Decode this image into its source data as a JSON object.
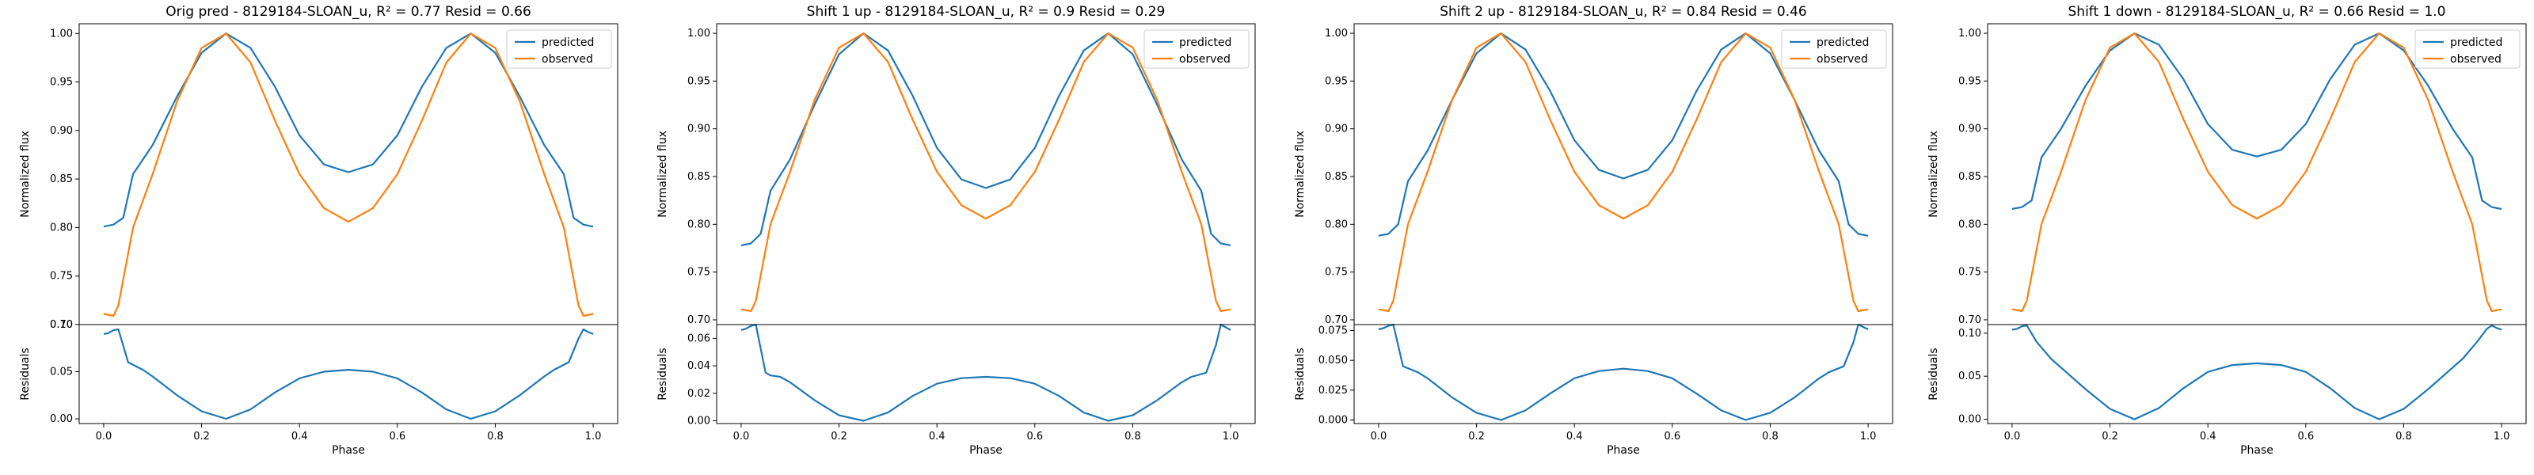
{
  "colors": {
    "predicted": "#1f77b4",
    "observed": "#ff7f0e"
  },
  "chart_data": [
    {
      "type": "line",
      "title": "Orig pred - 8129184-SLOAN_u, R² = 0.77 Resid = 0.66",
      "legend": [
        "predicted",
        "observed"
      ],
      "legend_position": "top-right",
      "top": {
        "ylabel": "Normalized flux",
        "xlim": [
          -0.05,
          1.05
        ],
        "ylim": [
          0.7,
          1.01
        ],
        "yticks": [
          0.7,
          0.75,
          0.8,
          0.85,
          0.9,
          0.95,
          1.0
        ],
        "ytick_labels": [
          "0.70",
          "0.75",
          "0.80",
          "0.85",
          "0.90",
          "0.95",
          "1.00"
        ],
        "series": [
          {
            "name": "predicted",
            "x": [
              0,
              0.02,
              0.04,
              0.06,
              0.1,
              0.15,
              0.2,
              0.25,
              0.3,
              0.35,
              0.4,
              0.45,
              0.5,
              0.55,
              0.6,
              0.65,
              0.7,
              0.75,
              0.8,
              0.85,
              0.9,
              0.94,
              0.96,
              0.98,
              1.0
            ],
            "y": [
              0.801,
              0.803,
              0.81,
              0.855,
              0.885,
              0.935,
              0.98,
              1.0,
              0.985,
              0.945,
              0.895,
              0.865,
              0.857,
              0.865,
              0.895,
              0.945,
              0.985,
              1.0,
              0.98,
              0.935,
              0.885,
              0.855,
              0.81,
              0.803,
              0.801
            ]
          },
          {
            "name": "observed",
            "x": [
              0,
              0.02,
              0.03,
              0.06,
              0.1,
              0.15,
              0.2,
              0.25,
              0.3,
              0.35,
              0.4,
              0.45,
              0.5,
              0.55,
              0.6,
              0.65,
              0.7,
              0.75,
              0.8,
              0.85,
              0.9,
              0.94,
              0.97,
              0.98,
              1.0
            ],
            "y": [
              0.711,
              0.709,
              0.72,
              0.8,
              0.855,
              0.93,
              0.985,
              1.0,
              0.97,
              0.91,
              0.855,
              0.82,
              0.806,
              0.82,
              0.855,
              0.91,
              0.97,
              1.0,
              0.985,
              0.93,
              0.855,
              0.8,
              0.72,
              0.709,
              0.711
            ]
          }
        ]
      },
      "bottom": {
        "xlabel": "Phase",
        "ylabel": "Residuals",
        "xlim": [
          -0.05,
          1.05
        ],
        "ylim": [
          -0.005,
          0.1
        ],
        "xticks": [
          0.0,
          0.2,
          0.4,
          0.6,
          0.8,
          1.0
        ],
        "xtick_labels": [
          "0.0",
          "0.2",
          "0.4",
          "0.6",
          "0.8",
          "1.0"
        ],
        "yticks": [
          0.0,
          0.05,
          0.1
        ],
        "ytick_labels": [
          "0.00",
          "0.05",
          "0.10"
        ],
        "series": [
          {
            "name": "residuals",
            "x": [
              0,
              0.01,
              0.02,
              0.03,
              0.05,
              0.08,
              0.1,
              0.15,
              0.2,
              0.25,
              0.3,
              0.35,
              0.4,
              0.45,
              0.5,
              0.55,
              0.6,
              0.65,
              0.7,
              0.75,
              0.8,
              0.85,
              0.9,
              0.92,
              0.95,
              0.97,
              0.98,
              0.99,
              1.0
            ],
            "y": [
              0.09,
              0.091,
              0.094,
              0.095,
              0.06,
              0.052,
              0.045,
              0.025,
              0.008,
              0.0,
              0.01,
              0.028,
              0.043,
              0.05,
              0.052,
              0.05,
              0.043,
              0.028,
              0.01,
              0.0,
              0.008,
              0.025,
              0.045,
              0.052,
              0.06,
              0.085,
              0.095,
              0.092,
              0.09
            ]
          }
        ]
      }
    },
    {
      "type": "line",
      "title": "Shift 1 up - 8129184-SLOAN_u, R² = 0.9 Resid = 0.29",
      "legend": [
        "predicted",
        "observed"
      ],
      "legend_position": "top-right",
      "top": {
        "ylabel": "Normalized flux",
        "xlim": [
          -0.05,
          1.05
        ],
        "ylim": [
          0.695,
          1.01
        ],
        "yticks": [
          0.7,
          0.75,
          0.8,
          0.85,
          0.9,
          0.95,
          1.0
        ],
        "ytick_labels": [
          "0.70",
          "0.75",
          "0.80",
          "0.85",
          "0.90",
          "0.95",
          "1.00"
        ],
        "series": [
          {
            "name": "predicted",
            "x": [
              0,
              0.02,
              0.04,
              0.06,
              0.1,
              0.15,
              0.2,
              0.25,
              0.3,
              0.35,
              0.4,
              0.45,
              0.5,
              0.55,
              0.6,
              0.65,
              0.7,
              0.75,
              0.8,
              0.85,
              0.9,
              0.94,
              0.96,
              0.98,
              1.0
            ],
            "y": [
              0.778,
              0.78,
              0.79,
              0.835,
              0.868,
              0.925,
              0.978,
              1.0,
              0.982,
              0.935,
              0.88,
              0.847,
              0.838,
              0.847,
              0.88,
              0.935,
              0.982,
              1.0,
              0.978,
              0.925,
              0.868,
              0.835,
              0.79,
              0.78,
              0.778
            ]
          },
          {
            "name": "observed",
            "x": [
              0,
              0.02,
              0.03,
              0.06,
              0.1,
              0.15,
              0.2,
              0.25,
              0.3,
              0.35,
              0.4,
              0.45,
              0.5,
              0.55,
              0.6,
              0.65,
              0.7,
              0.75,
              0.8,
              0.85,
              0.9,
              0.94,
              0.97,
              0.98,
              1.0
            ],
            "y": [
              0.711,
              0.709,
              0.72,
              0.8,
              0.855,
              0.93,
              0.985,
              1.0,
              0.97,
              0.91,
              0.855,
              0.82,
              0.806,
              0.82,
              0.855,
              0.91,
              0.97,
              1.0,
              0.985,
              0.93,
              0.855,
              0.8,
              0.72,
              0.709,
              0.711
            ]
          }
        ]
      },
      "bottom": {
        "xlabel": "Phase",
        "ylabel": "Residuals",
        "xlim": [
          -0.05,
          1.05
        ],
        "ylim": [
          -0.002,
          0.07
        ],
        "xticks": [
          0.0,
          0.2,
          0.4,
          0.6,
          0.8,
          1.0
        ],
        "xtick_labels": [
          "0.0",
          "0.2",
          "0.4",
          "0.6",
          "0.8",
          "1.0"
        ],
        "yticks": [
          0.0,
          0.02,
          0.04,
          0.06
        ],
        "ytick_labels": [
          "0.00",
          "0.02",
          "0.04",
          "0.06"
        ],
        "series": [
          {
            "name": "residuals",
            "x": [
              0,
              0.01,
              0.02,
              0.03,
              0.05,
              0.06,
              0.08,
              0.1,
              0.15,
              0.2,
              0.25,
              0.3,
              0.35,
              0.4,
              0.45,
              0.5,
              0.55,
              0.6,
              0.65,
              0.7,
              0.75,
              0.8,
              0.85,
              0.9,
              0.92,
              0.95,
              0.97,
              0.98,
              0.99,
              1.0
            ],
            "y": [
              0.066,
              0.067,
              0.069,
              0.07,
              0.035,
              0.033,
              0.032,
              0.028,
              0.015,
              0.004,
              0.0,
              0.006,
              0.018,
              0.027,
              0.031,
              0.032,
              0.031,
              0.027,
              0.018,
              0.006,
              0.0,
              0.004,
              0.015,
              0.028,
              0.032,
              0.035,
              0.055,
              0.07,
              0.068,
              0.066
            ]
          }
        ]
      }
    },
    {
      "type": "line",
      "title": "Shift 2 up - 8129184-SLOAN_u, R² = 0.84 Resid = 0.46",
      "legend": [
        "predicted",
        "observed"
      ],
      "legend_position": "top-right",
      "top": {
        "ylabel": "Normalized flux",
        "xlim": [
          -0.05,
          1.05
        ],
        "ylim": [
          0.695,
          1.01
        ],
        "yticks": [
          0.7,
          0.75,
          0.8,
          0.85,
          0.9,
          0.95,
          1.0
        ],
        "ytick_labels": [
          "0.70",
          "0.75",
          "0.80",
          "0.85",
          "0.90",
          "0.95",
          "1.00"
        ],
        "series": [
          {
            "name": "predicted",
            "x": [
              0,
              0.02,
              0.04,
              0.06,
              0.1,
              0.15,
              0.2,
              0.25,
              0.3,
              0.35,
              0.4,
              0.45,
              0.5,
              0.55,
              0.6,
              0.65,
              0.7,
              0.75,
              0.8,
              0.85,
              0.9,
              0.94,
              0.96,
              0.98,
              1.0
            ],
            "y": [
              0.788,
              0.79,
              0.8,
              0.845,
              0.877,
              0.93,
              0.979,
              1.0,
              0.983,
              0.94,
              0.888,
              0.857,
              0.848,
              0.857,
              0.888,
              0.94,
              0.983,
              1.0,
              0.979,
              0.93,
              0.877,
              0.845,
              0.8,
              0.79,
              0.788
            ]
          },
          {
            "name": "observed",
            "x": [
              0,
              0.02,
              0.03,
              0.06,
              0.1,
              0.15,
              0.2,
              0.25,
              0.3,
              0.35,
              0.4,
              0.45,
              0.5,
              0.55,
              0.6,
              0.65,
              0.7,
              0.75,
              0.8,
              0.85,
              0.9,
              0.94,
              0.97,
              0.98,
              1.0
            ],
            "y": [
              0.711,
              0.709,
              0.72,
              0.8,
              0.855,
              0.93,
              0.985,
              1.0,
              0.97,
              0.91,
              0.855,
              0.82,
              0.806,
              0.82,
              0.855,
              0.91,
              0.97,
              1.0,
              0.985,
              0.93,
              0.855,
              0.8,
              0.72,
              0.709,
              0.711
            ]
          }
        ]
      },
      "bottom": {
        "xlabel": "Phase",
        "ylabel": "Residuals",
        "xlim": [
          -0.05,
          1.05
        ],
        "ylim": [
          -0.003,
          0.08
        ],
        "xticks": [
          0.0,
          0.2,
          0.4,
          0.6,
          0.8,
          1.0
        ],
        "xtick_labels": [
          "0.0",
          "0.2",
          "0.4",
          "0.6",
          "0.8",
          "1.0"
        ],
        "yticks": [
          0.0,
          0.025,
          0.05,
          0.075
        ],
        "ytick_labels": [
          "0.000",
          "0.025",
          "0.050",
          "0.075"
        ],
        "series": [
          {
            "name": "residuals",
            "x": [
              0,
              0.01,
              0.02,
              0.03,
              0.05,
              0.08,
              0.1,
              0.15,
              0.2,
              0.25,
              0.3,
              0.35,
              0.4,
              0.45,
              0.5,
              0.55,
              0.6,
              0.65,
              0.7,
              0.75,
              0.8,
              0.85,
              0.9,
              0.92,
              0.95,
              0.97,
              0.98,
              0.99,
              1.0
            ],
            "y": [
              0.076,
              0.077,
              0.079,
              0.08,
              0.045,
              0.04,
              0.035,
              0.019,
              0.006,
              0.0,
              0.008,
              0.022,
              0.035,
              0.041,
              0.043,
              0.041,
              0.035,
              0.022,
              0.008,
              0.0,
              0.006,
              0.019,
              0.035,
              0.04,
              0.045,
              0.065,
              0.08,
              0.078,
              0.076
            ]
          }
        ]
      }
    },
    {
      "type": "line",
      "title": "Shift 1 down - 8129184-SLOAN_u, R² = 0.66 Resid = 1.0",
      "legend": [
        "predicted",
        "observed"
      ],
      "legend_position": "top-right",
      "top": {
        "ylabel": "Normalized flux",
        "xlim": [
          -0.05,
          1.05
        ],
        "ylim": [
          0.695,
          1.01
        ],
        "yticks": [
          0.7,
          0.75,
          0.8,
          0.85,
          0.9,
          0.95,
          1.0
        ],
        "ytick_labels": [
          "0.70",
          "0.75",
          "0.80",
          "0.85",
          "0.90",
          "0.95",
          "1.00"
        ],
        "series": [
          {
            "name": "predicted",
            "x": [
              0,
              0.02,
              0.04,
              0.06,
              0.1,
              0.15,
              0.2,
              0.25,
              0.3,
              0.35,
              0.4,
              0.45,
              0.5,
              0.55,
              0.6,
              0.65,
              0.7,
              0.75,
              0.8,
              0.85,
              0.9,
              0.94,
              0.96,
              0.98,
              1.0
            ],
            "y": [
              0.816,
              0.818,
              0.825,
              0.87,
              0.9,
              0.945,
              0.982,
              1.0,
              0.988,
              0.952,
              0.905,
              0.878,
              0.871,
              0.878,
              0.905,
              0.952,
              0.988,
              1.0,
              0.982,
              0.945,
              0.9,
              0.87,
              0.825,
              0.818,
              0.816
            ]
          },
          {
            "name": "observed",
            "x": [
              0,
              0.02,
              0.03,
              0.06,
              0.1,
              0.15,
              0.2,
              0.25,
              0.3,
              0.35,
              0.4,
              0.45,
              0.5,
              0.55,
              0.6,
              0.65,
              0.7,
              0.75,
              0.8,
              0.85,
              0.9,
              0.94,
              0.97,
              0.98,
              1.0
            ],
            "y": [
              0.711,
              0.709,
              0.72,
              0.8,
              0.855,
              0.93,
              0.985,
              1.0,
              0.97,
              0.91,
              0.855,
              0.82,
              0.806,
              0.82,
              0.855,
              0.91,
              0.97,
              1.0,
              0.985,
              0.93,
              0.855,
              0.8,
              0.72,
              0.709,
              0.711
            ]
          }
        ]
      },
      "bottom": {
        "xlabel": "Phase",
        "ylabel": "Residuals",
        "xlim": [
          -0.05,
          1.05
        ],
        "ylim": [
          -0.005,
          0.11
        ],
        "xticks": [
          0.0,
          0.2,
          0.4,
          0.6,
          0.8,
          1.0
        ],
        "xtick_labels": [
          "0.0",
          "0.2",
          "0.4",
          "0.6",
          "0.8",
          "1.0"
        ],
        "yticks": [
          0.0,
          0.05,
          0.1
        ],
        "ytick_labels": [
          "0.00",
          "0.05",
          "0.10"
        ],
        "series": [
          {
            "name": "residuals",
            "x": [
              0,
              0.01,
              0.02,
              0.03,
              0.05,
              0.08,
              0.1,
              0.15,
              0.2,
              0.25,
              0.3,
              0.35,
              0.4,
              0.45,
              0.5,
              0.55,
              0.6,
              0.65,
              0.7,
              0.75,
              0.8,
              0.85,
              0.9,
              0.92,
              0.95,
              0.97,
              0.98,
              0.99,
              1.0
            ],
            "y": [
              0.104,
              0.105,
              0.108,
              0.109,
              0.09,
              0.07,
              0.06,
              0.035,
              0.012,
              0.0,
              0.013,
              0.036,
              0.055,
              0.063,
              0.065,
              0.063,
              0.055,
              0.036,
              0.013,
              0.0,
              0.012,
              0.035,
              0.06,
              0.07,
              0.09,
              0.105,
              0.109,
              0.106,
              0.104
            ]
          }
        ]
      }
    }
  ]
}
